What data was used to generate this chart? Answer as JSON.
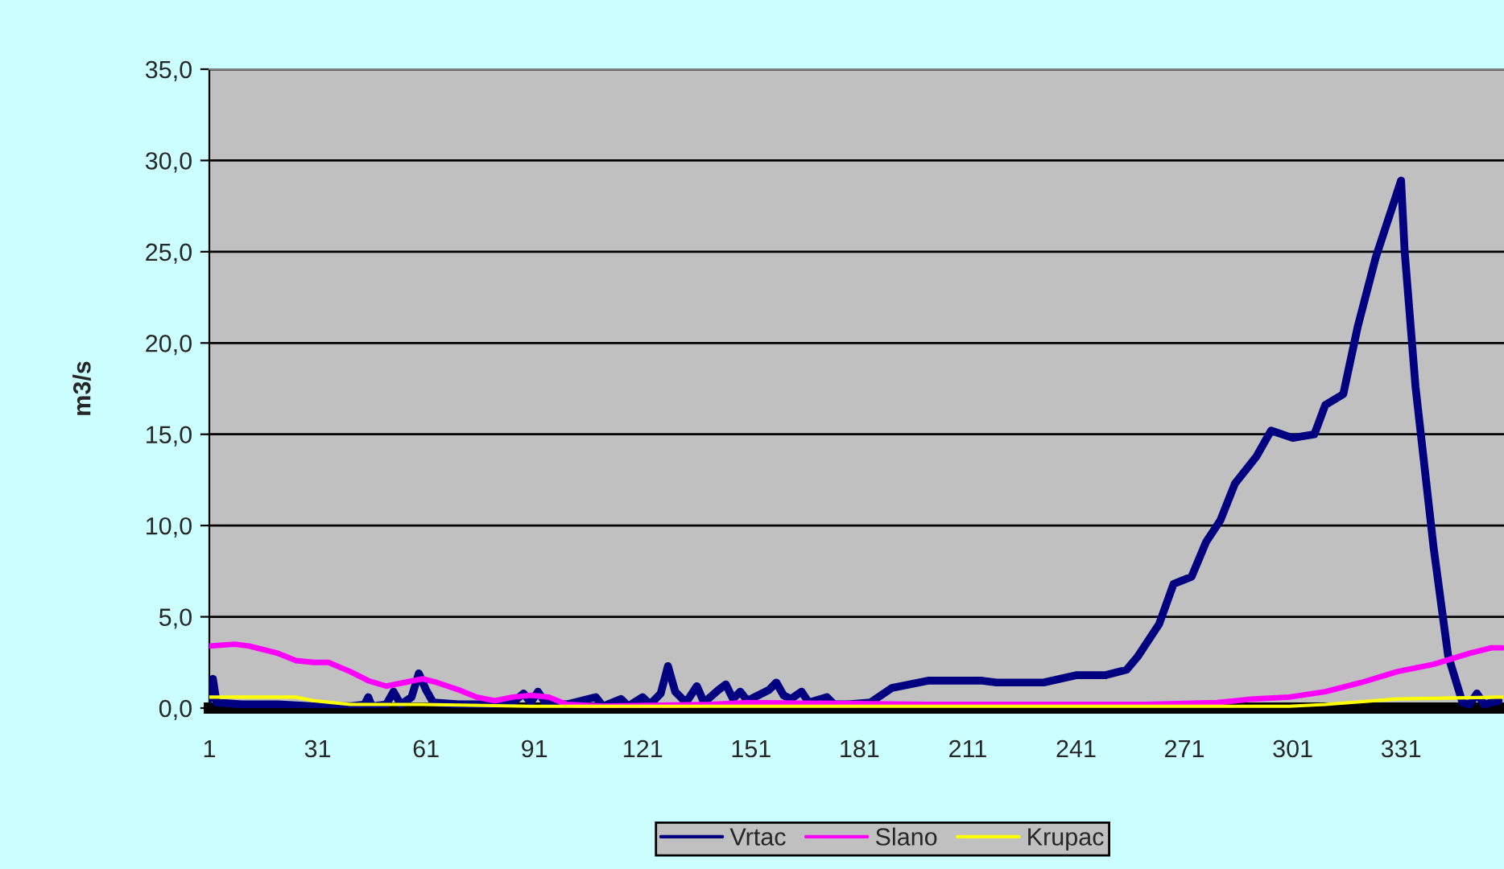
{
  "chart_data": {
    "type": "line",
    "ylabel": "m3/s",
    "xlim": [
      1,
      359.5
    ],
    "xticks": [
      1,
      31,
      61,
      91,
      121,
      151,
      181,
      211,
      241,
      271,
      301,
      331
    ],
    "ylim": [
      0,
      35
    ],
    "yticks": [
      {
        "value": 0,
        "label": "0,0"
      },
      {
        "value": 5,
        "label": "5,0"
      },
      {
        "value": 10,
        "label": "10,0"
      },
      {
        "value": 15,
        "label": "15,0"
      },
      {
        "value": 20,
        "label": "20,0"
      },
      {
        "value": 25,
        "label": "25,0"
      },
      {
        "value": 30,
        "label": "30,0"
      },
      {
        "value": 35,
        "label": "35,0"
      }
    ],
    "grid": "y",
    "legend": "bottom",
    "marker": "none",
    "line_style": "solid",
    "series": [
      {
        "name": "Vrtac",
        "color": "#000080",
        "x": [
          1,
          2,
          3,
          10,
          20,
          30,
          40,
          44,
          45,
          46,
          50,
          52,
          54,
          57,
          59,
          61,
          63,
          70,
          78,
          85,
          88,
          90,
          92,
          94,
          100,
          108,
          110,
          115,
          117,
          121,
          123,
          126,
          128,
          130,
          133,
          136,
          138,
          142,
          144,
          146,
          148,
          150,
          156,
          158,
          160,
          162,
          165,
          167,
          172,
          174,
          178,
          184,
          190,
          200,
          215,
          219,
          232,
          241,
          249,
          255,
          258,
          264,
          268,
          273,
          277,
          281,
          285,
          291,
          295,
          301,
          307,
          310,
          315,
          319,
          324,
          327,
          331,
          332,
          335,
          340,
          344,
          348,
          350,
          352,
          354,
          358
        ],
        "values": [
          0.5,
          1.6,
          0.3,
          0.2,
          0.2,
          0.1,
          0.1,
          0.2,
          0.6,
          0.1,
          0.2,
          0.9,
          0.2,
          0.6,
          1.9,
          1.0,
          0.3,
          0.2,
          0.2,
          0.3,
          0.8,
          0.3,
          0.9,
          0.3,
          0.2,
          0.6,
          0.1,
          0.5,
          0.1,
          0.6,
          0.2,
          0.8,
          2.3,
          0.9,
          0.3,
          1.2,
          0.3,
          1.0,
          1.3,
          0.5,
          0.9,
          0.4,
          1.0,
          1.4,
          0.7,
          0.5,
          0.9,
          0.3,
          0.6,
          0.2,
          0.2,
          0.3,
          1.1,
          1.5,
          1.5,
          1.4,
          1.4,
          1.8,
          1.8,
          2.1,
          2.8,
          4.6,
          6.8,
          7.2,
          9.1,
          10.3,
          12.3,
          13.8,
          15.2,
          14.8,
          15.0,
          16.6,
          17.2,
          20.9,
          24.7,
          26.5,
          28.9,
          25.0,
          17.6,
          8.8,
          2.9,
          0.3,
          0.2,
          0.8,
          0.2,
          0.4
        ]
      },
      {
        "name": "Slano",
        "color": "#ff00ff",
        "x": [
          1,
          8,
          12,
          20,
          25,
          30,
          34,
          40,
          45,
          50,
          55,
          60,
          64,
          70,
          75,
          80,
          85,
          90,
          95,
          100,
          110,
          140,
          150,
          200,
          260,
          280,
          290,
          300,
          310,
          320,
          330,
          340,
          350,
          356,
          359
        ],
        "values": [
          3.4,
          3.5,
          3.4,
          3.0,
          2.6,
          2.5,
          2.5,
          2.0,
          1.5,
          1.2,
          1.4,
          1.6,
          1.4,
          1.0,
          0.6,
          0.4,
          0.6,
          0.7,
          0.6,
          0.2,
          0.1,
          0.2,
          0.3,
          0.2,
          0.2,
          0.3,
          0.5,
          0.6,
          0.9,
          1.4,
          2.0,
          2.4,
          3.0,
          3.3,
          3.3
        ]
      },
      {
        "name": "Krupac",
        "color": "#ffff00",
        "x": [
          1,
          25,
          30,
          40,
          60,
          90,
          200,
          300,
          310,
          330,
          359
        ],
        "values": [
          0.6,
          0.6,
          0.4,
          0.2,
          0.2,
          0.1,
          0.1,
          0.1,
          0.2,
          0.5,
          0.6
        ]
      }
    ]
  }
}
